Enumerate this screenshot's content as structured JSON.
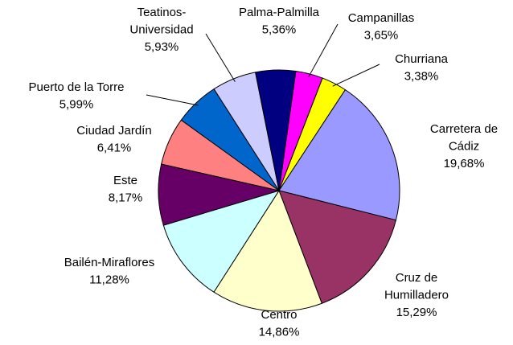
{
  "chart_data": {
    "type": "pie",
    "categories": [
      "Campanillas",
      "Churriana",
      "Carretera de\nCádiz",
      "Cruz de\nHumilladero",
      "Centro",
      "Bailén-Miraflores",
      "Este",
      "Ciudad  Jardín",
      "Puerto de la Torre",
      "Teatinos-\nUniversidad",
      "Palma-Palmilla"
    ],
    "values": [
      3.65,
      3.38,
      19.68,
      15.29,
      14.86,
      11.28,
      8.17,
      6.41,
      5.99,
      5.93,
      5.36
    ],
    "value_labels": [
      "3,65%",
      "3,38%",
      "19,68%",
      "15,29%",
      "14,86%",
      "11,28%",
      "8,17%",
      "6,41%",
      "5,99%",
      "5,93%",
      "5,36%"
    ],
    "colors": [
      "#ff00ff",
      "#ffff00",
      "#9999ff",
      "#993366",
      "#ffffcc",
      "#ccffff",
      "#660066",
      "#ff8080",
      "#0066cc",
      "#ccccff",
      "#000080"
    ]
  }
}
